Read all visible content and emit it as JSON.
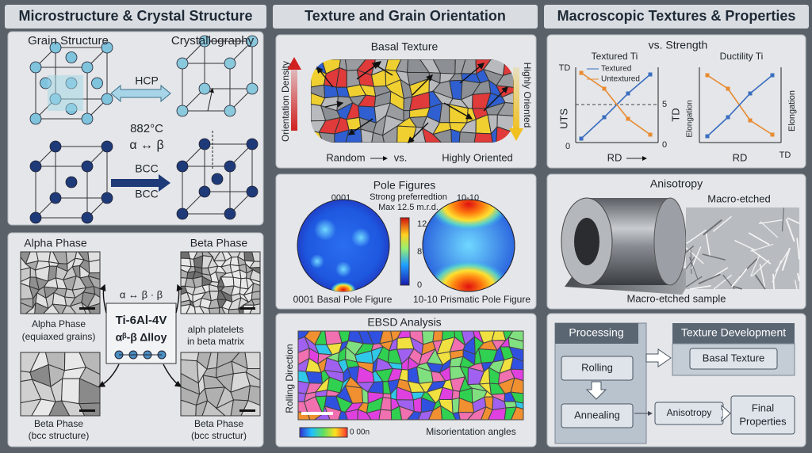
{
  "microstructure": {
    "title": "Microstructure & Crystal Structure",
    "crystal": {
      "grain_structure": "Grain Structure",
      "crystallography": "Crystallography",
      "hcp": "HCP",
      "temperature": "882°C",
      "transition": "α ↔ β",
      "bcc_1": "BCC",
      "bcc_2": "BCC"
    },
    "phases": {
      "alpha_title": "Alpha Phase",
      "beta_title": "Beta Phase",
      "transition": "α ↔ β · β",
      "alloy": "Ti-6Al-4V",
      "alloy_sub": "αᵝ-β Δlloy",
      "alpha_caption": [
        "Alpha Phase",
        "(equiaxed grains)"
      ],
      "platelets_caption": [
        "alph platelets",
        "in beta matrix"
      ],
      "beta_caption_1": [
        "Beta Phase",
        "(bcc structure)"
      ],
      "beta_caption_2": [
        "Beta Phase",
        "(bcc structur)"
      ]
    }
  },
  "texture": {
    "title": "Texture and Grain Orientation",
    "basal": {
      "title": "Basal Texture",
      "y_label": "Orientation Density",
      "right_label": "Highly Oriented",
      "random": "Random",
      "vs": "vs.",
      "oriented": "Highly Oriented"
    },
    "pole": {
      "title": "Pole Figures",
      "left_label": "0001",
      "note": [
        "Strong preferredtion",
        "Max 12.5 m.r.d."
      ],
      "right_label": "10-10",
      "scale": [
        "12",
        "8",
        "0"
      ],
      "left_caption": "0001 Basal Pole Figure",
      "right_caption": "10-10 Prismatic Pole Figure"
    },
    "ebsd": {
      "title": "EBSD Analysis",
      "side_label": "Rolling Direction",
      "scale_label": "0 00n",
      "caption": "Misorientation angles"
    }
  },
  "macro": {
    "title": "Macroscopic Textures & Properties",
    "strength": {
      "textured_ti": "Textured Ti",
      "vs_strength": "vs. Strength",
      "ductility_ti": "Ductility Ti",
      "td_top": "TD",
      "legend": [
        "Textured",
        "Untextured"
      ],
      "uts": "UTS",
      "td_mid": "TD",
      "five": "5",
      "zero_left": "0",
      "zero_right": "0",
      "elongation_1": "Elongation",
      "elongation_2": "Elongation",
      "rd_1": "RD",
      "rd_2": "RD",
      "td_right": "TD"
    },
    "anisotropy": {
      "title": "Anisotropy",
      "etched_label": "Macro-etched",
      "caption": "Macro-etched sample"
    },
    "processing": {
      "title": "Processing",
      "development": "Texture Development",
      "basal": "Basal Texture",
      "rolling": "Rolling",
      "annealing": "Annealing",
      "anisotropy": "Anisotropy",
      "final": [
        "Final",
        "Properties"
      ]
    }
  }
}
